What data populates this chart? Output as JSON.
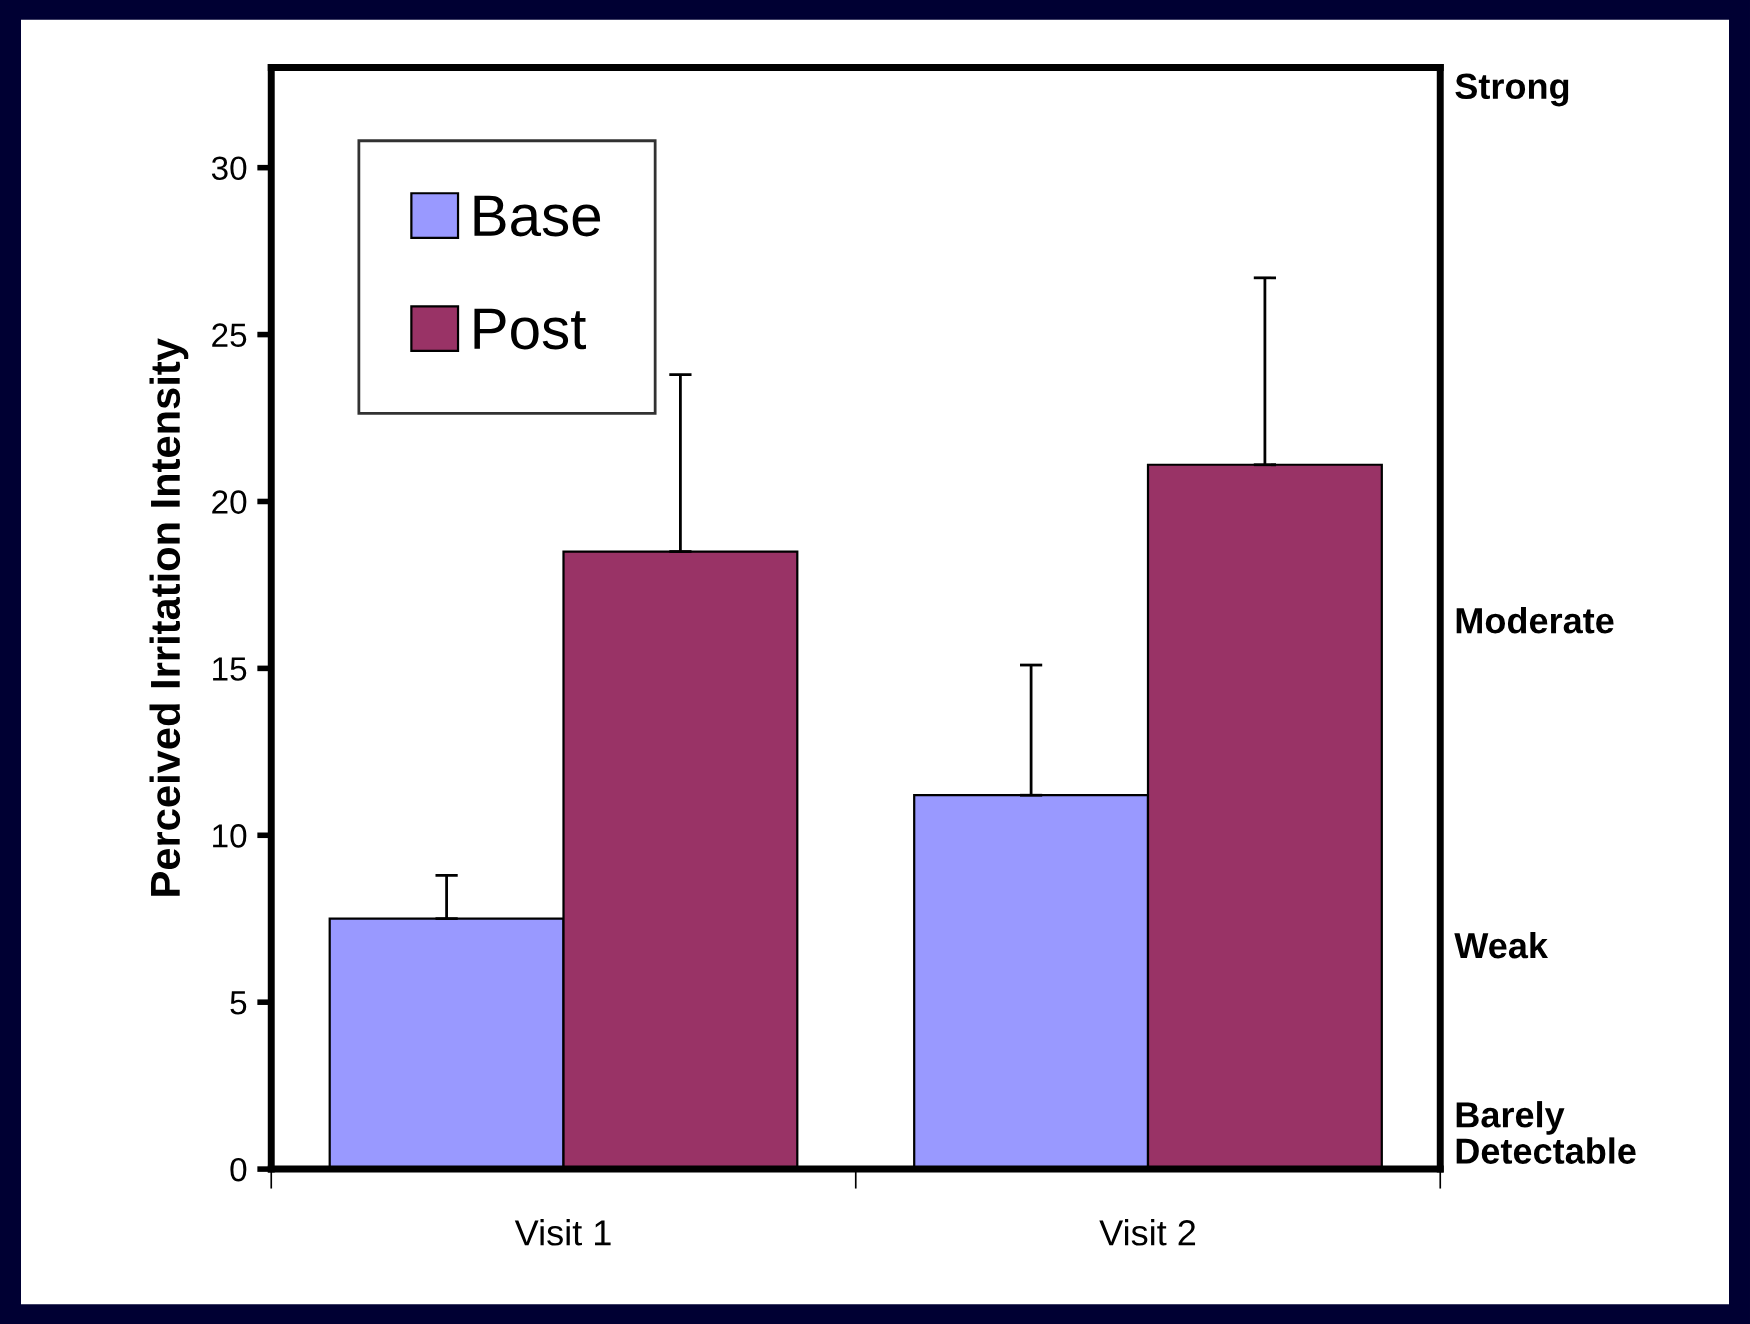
{
  "chart_data": {
    "type": "bar",
    "ylabel": "Perceived Irritation Intensity",
    "categories": [
      "Visit 1",
      "Visit 2"
    ],
    "series": [
      {
        "name": "Base",
        "color": "#9999ff",
        "values": [
          7.5,
          11.2
        ],
        "errors": [
          [
            7.5,
            8.8
          ],
          [
            11.2,
            15.1
          ]
        ]
      },
      {
        "name": "Post",
        "color": "#993366",
        "values": [
          18.5,
          21.1
        ],
        "errors": [
          [
            18.5,
            23.8
          ],
          [
            21.1,
            26.7
          ]
        ]
      }
    ],
    "ylim": [
      0,
      33
    ],
    "yticks": [
      0,
      5,
      10,
      15,
      20,
      25,
      30
    ],
    "annotations": [
      "Strong",
      "Moderate",
      "Weak",
      "Barely\nDetectable"
    ],
    "legend": "top left",
    "grid": false
  }
}
